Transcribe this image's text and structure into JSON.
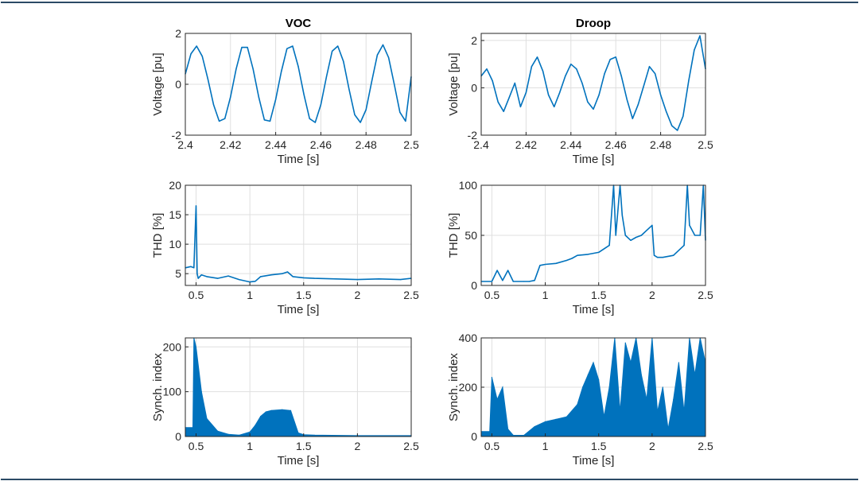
{
  "colors": {
    "line": "#0072BD",
    "axis": "#262626",
    "grid": "#dfdfdf",
    "frame": "#2b4a66"
  },
  "column_titles": [
    "VOC",
    "Droop"
  ],
  "chart_data": [
    {
      "type": "line",
      "title": "VOC",
      "xlabel": "Time [s]",
      "ylabel": "Voltage [pu]",
      "xlim": [
        2.4,
        2.5
      ],
      "ylim": [
        -2,
        2
      ],
      "xticks": [
        2.4,
        2.42,
        2.44,
        2.46,
        2.48,
        2.5
      ],
      "xtick_labels": [
        "2.4",
        "2.42",
        "2.44",
        "2.46",
        "2.48",
        "2.5"
      ],
      "yticks": [
        -2,
        0,
        2
      ],
      "ytick_labels": [
        "-2",
        "0",
        "2"
      ],
      "grid": true,
      "series": [
        {
          "x": [
            2.4,
            2.4025,
            2.405,
            2.4075,
            2.41,
            2.4125,
            2.415,
            2.4175,
            2.42,
            2.4225,
            2.425,
            2.4275,
            2.43,
            2.4325,
            2.435,
            2.4375,
            2.44,
            2.4425,
            2.445,
            2.4475,
            2.45,
            2.4525,
            2.455,
            2.4575,
            2.46,
            2.4625,
            2.465,
            2.4675,
            2.47,
            2.4725,
            2.475,
            2.4775,
            2.48,
            2.4825,
            2.485,
            2.4875,
            2.49,
            2.4925,
            2.495,
            2.4975,
            2.5
          ],
          "y": [
            0.4,
            1.2,
            1.5,
            1.1,
            0.2,
            -0.8,
            -1.45,
            -1.35,
            -0.5,
            0.6,
            1.45,
            1.45,
            0.6,
            -0.5,
            -1.4,
            -1.45,
            -0.6,
            0.5,
            1.4,
            1.5,
            0.7,
            -0.4,
            -1.35,
            -1.5,
            -0.8,
            0.3,
            1.3,
            1.5,
            0.9,
            -0.2,
            -1.2,
            -1.5,
            -1.0,
            0.1,
            1.15,
            1.55,
            1.05,
            0.0,
            -1.1,
            -1.45,
            0.3
          ]
        }
      ]
    },
    {
      "type": "line",
      "title": "Droop",
      "xlabel": "Time [s]",
      "ylabel": "Voltage [pu]",
      "xlim": [
        2.4,
        2.5
      ],
      "ylim": [
        -2,
        2.3
      ],
      "xticks": [
        2.4,
        2.42,
        2.44,
        2.46,
        2.48,
        2.5
      ],
      "xtick_labels": [
        "2.4",
        "2.42",
        "2.44",
        "2.46",
        "2.48",
        "2.5"
      ],
      "yticks": [
        -2,
        0,
        2
      ],
      "ytick_labels": [
        "-2",
        "0",
        "2"
      ],
      "grid": true,
      "series": [
        {
          "x": [
            2.4,
            2.4025,
            2.405,
            2.4075,
            2.41,
            2.4125,
            2.415,
            2.4175,
            2.42,
            2.4225,
            2.425,
            2.4275,
            2.43,
            2.4325,
            2.435,
            2.4375,
            2.44,
            2.4425,
            2.445,
            2.4475,
            2.45,
            2.4525,
            2.455,
            2.4575,
            2.46,
            2.4625,
            2.465,
            2.4675,
            2.47,
            2.4725,
            2.475,
            2.4775,
            2.48,
            2.4825,
            2.485,
            2.4875,
            2.49,
            2.4925,
            2.495,
            2.4975,
            2.5
          ],
          "y": [
            0.5,
            0.8,
            0.3,
            -0.6,
            -1.0,
            -0.4,
            0.2,
            -0.8,
            -0.2,
            0.9,
            1.3,
            0.7,
            -0.3,
            -0.8,
            -0.2,
            0.5,
            1.0,
            0.8,
            0.2,
            -0.6,
            -0.9,
            -0.3,
            0.6,
            1.2,
            1.3,
            0.5,
            -0.5,
            -1.3,
            -0.7,
            0.1,
            0.9,
            0.6,
            -0.3,
            -1.0,
            -1.6,
            -1.8,
            -1.2,
            0.3,
            1.6,
            2.2,
            0.8
          ]
        }
      ]
    },
    {
      "type": "line",
      "title": "",
      "xlabel": "Time [s]",
      "ylabel": "THD [%]",
      "xlim": [
        0.4,
        2.5
      ],
      "ylim": [
        3,
        20
      ],
      "xticks": [
        0.5,
        1,
        1.5,
        2,
        2.5
      ],
      "xtick_labels": [
        "0.5",
        "1",
        "1.5",
        "2",
        "2.5"
      ],
      "yticks": [
        5,
        10,
        15,
        20
      ],
      "ytick_labels": [
        "5",
        "10",
        "15",
        "20"
      ],
      "grid": true,
      "series": [
        {
          "x": [
            0.4,
            0.45,
            0.48,
            0.5,
            0.51,
            0.52,
            0.55,
            0.6,
            0.7,
            0.8,
            0.9,
            1.0,
            1.05,
            1.1,
            1.2,
            1.3,
            1.35,
            1.4,
            1.5,
            1.6,
            1.8,
            2.0,
            2.2,
            2.4,
            2.5
          ],
          "y": [
            6,
            6.2,
            6.0,
            16.5,
            5.0,
            4.2,
            4.8,
            4.5,
            4.2,
            4.6,
            4.0,
            3.6,
            3.7,
            4.5,
            4.8,
            5.0,
            5.3,
            4.5,
            4.3,
            4.2,
            4.1,
            4.0,
            4.1,
            4.0,
            4.2
          ]
        }
      ]
    },
    {
      "type": "line",
      "title": "",
      "xlabel": "Time [s]",
      "ylabel": "THD [%]",
      "xlim": [
        0.4,
        2.5
      ],
      "ylim": [
        0,
        100
      ],
      "xticks": [
        0.5,
        1,
        1.5,
        2,
        2.5
      ],
      "xtick_labels": [
        "0.5",
        "1",
        "1.5",
        "2",
        "2.5"
      ],
      "yticks": [
        0,
        50,
        100
      ],
      "ytick_labels": [
        "0",
        "50",
        "100"
      ],
      "grid": true,
      "series": [
        {
          "x": [
            0.4,
            0.5,
            0.55,
            0.6,
            0.65,
            0.7,
            0.8,
            0.85,
            0.9,
            0.95,
            1.0,
            1.1,
            1.2,
            1.25,
            1.3,
            1.4,
            1.5,
            1.6,
            1.64,
            1.66,
            1.7,
            1.72,
            1.75,
            1.8,
            1.85,
            1.9,
            1.95,
            2.0,
            2.02,
            2.05,
            2.1,
            2.2,
            2.3,
            2.33,
            2.35,
            2.4,
            2.45,
            2.48,
            2.5
          ],
          "y": [
            4,
            4,
            15,
            5,
            15,
            4,
            4,
            4,
            5,
            20,
            21,
            22,
            25,
            27,
            30,
            31,
            33,
            40,
            100,
            50,
            100,
            70,
            50,
            45,
            48,
            50,
            55,
            60,
            30,
            28,
            28,
            30,
            40,
            100,
            60,
            50,
            50,
            100,
            45
          ]
        }
      ]
    },
    {
      "type": "area",
      "title": "",
      "xlabel": "Time [s]",
      "ylabel": "Synch. index",
      "xlim": [
        0.4,
        2.5
      ],
      "ylim": [
        0,
        220
      ],
      "xticks": [
        0.5,
        1,
        1.5,
        2,
        2.5
      ],
      "xtick_labels": [
        "0.5",
        "1",
        "1.5",
        "2",
        "2.5"
      ],
      "yticks": [
        0,
        100,
        200
      ],
      "ytick_labels": [
        "0",
        "100",
        "200"
      ],
      "grid": true,
      "series": [
        {
          "x": [
            0.4,
            0.47,
            0.48,
            0.5,
            0.55,
            0.6,
            0.7,
            0.8,
            0.9,
            1.0,
            1.05,
            1.1,
            1.15,
            1.2,
            1.3,
            1.38,
            1.45,
            1.5,
            1.6,
            2.0,
            2.5
          ],
          "y": [
            20,
            20,
            220,
            200,
            100,
            40,
            12,
            5,
            3,
            10,
            25,
            45,
            55,
            58,
            60,
            58,
            8,
            4,
            3,
            2,
            2
          ]
        }
      ]
    },
    {
      "type": "area",
      "title": "",
      "xlabel": "Time [s]",
      "ylabel": "Synch. index",
      "xlim": [
        0.4,
        2.5
      ],
      "ylim": [
        0,
        400
      ],
      "xticks": [
        0.5,
        1,
        1.5,
        2,
        2.5
      ],
      "xtick_labels": [
        "0.5",
        "1",
        "1.5",
        "2",
        "2.5"
      ],
      "yticks": [
        0,
        200,
        400
      ],
      "ytick_labels": [
        "0",
        "200",
        "400"
      ],
      "grid": true,
      "series": [
        {
          "x": [
            0.4,
            0.48,
            0.5,
            0.55,
            0.6,
            0.65,
            0.7,
            0.8,
            0.9,
            1.0,
            1.1,
            1.2,
            1.3,
            1.35,
            1.4,
            1.45,
            1.5,
            1.55,
            1.6,
            1.65,
            1.7,
            1.75,
            1.8,
            1.85,
            1.9,
            1.95,
            2.0,
            2.05,
            2.1,
            2.15,
            2.2,
            2.25,
            2.3,
            2.35,
            2.4,
            2.45,
            2.5
          ],
          "y": [
            20,
            20,
            240,
            150,
            200,
            30,
            5,
            5,
            40,
            60,
            70,
            80,
            130,
            200,
            250,
            300,
            230,
            80,
            200,
            400,
            100,
            380,
            300,
            400,
            250,
            150,
            400,
            100,
            200,
            30,
            150,
            300,
            100,
            400,
            250,
            400,
            300
          ]
        }
      ]
    }
  ]
}
